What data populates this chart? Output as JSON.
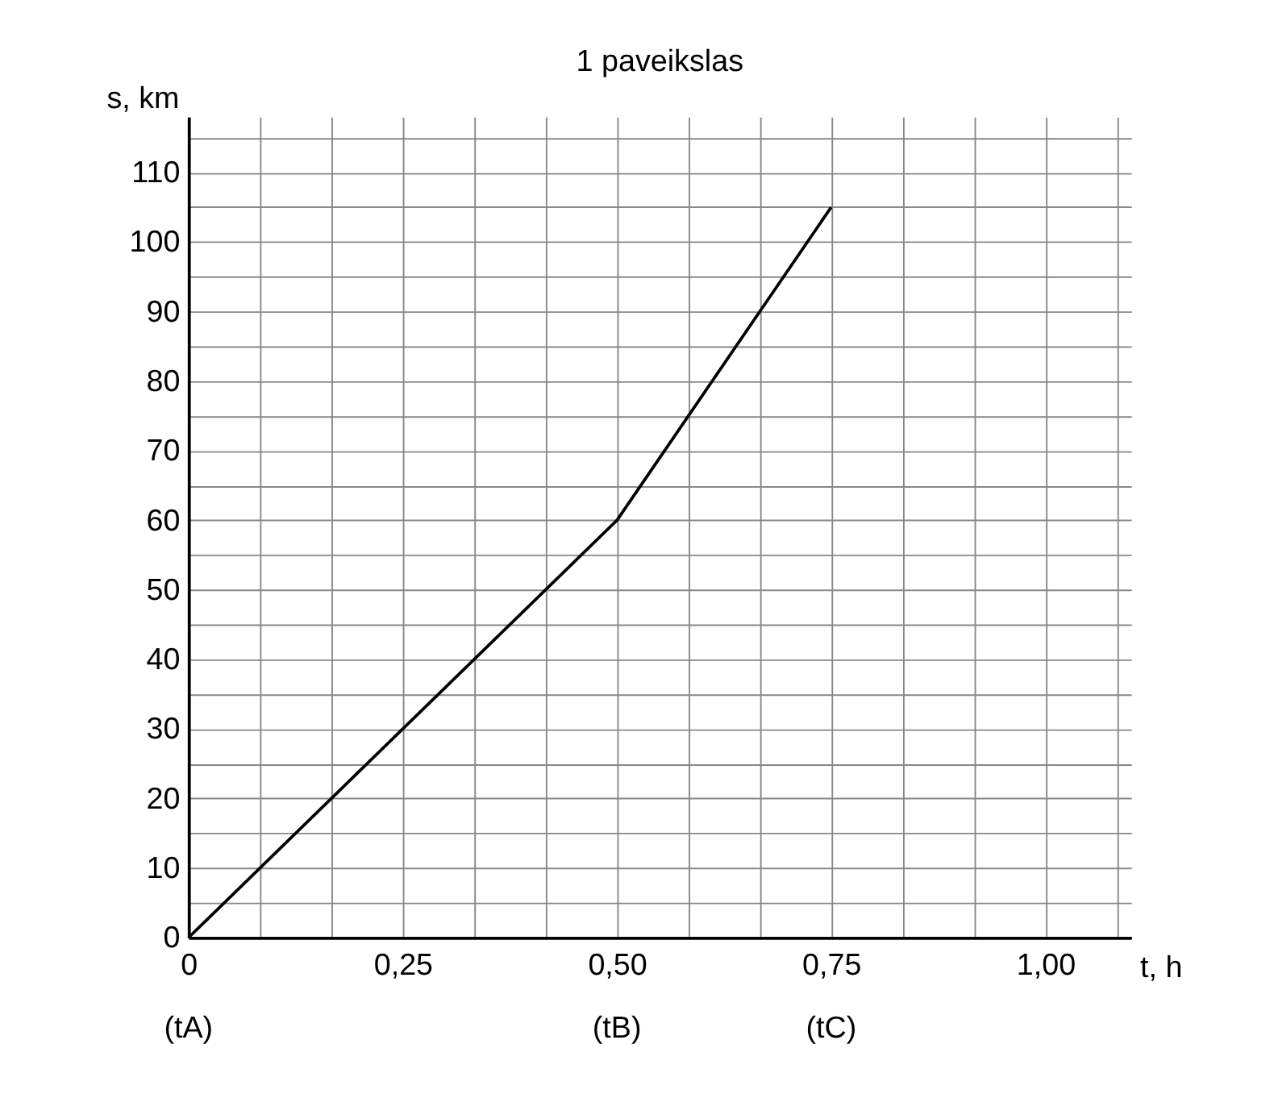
{
  "chart_data": {
    "type": "line",
    "title": "1 paveikslas",
    "xlabel": "t, h",
    "ylabel": "s, km",
    "x": [
      0,
      0.5,
      0.75
    ],
    "series": [
      {
        "color": "#000000",
        "values": [
          0,
          60,
          105
        ]
      }
    ],
    "xlim": [
      0,
      1.1
    ],
    "ylim": [
      0,
      118
    ],
    "xticks": [
      0,
      {
        "value": 0.0833,
        "label": null
      },
      {
        "value": 0.1667,
        "label": null
      },
      {
        "value": 0.25,
        "label": "0,25"
      },
      {
        "value": 0.3333,
        "label": null
      },
      {
        "value": 0.4167,
        "label": null
      },
      {
        "value": 0.5,
        "label": "0,50"
      },
      {
        "value": 0.5833,
        "label": null
      },
      {
        "value": 0.6667,
        "label": null
      },
      {
        "value": 0.75,
        "label": "0,75"
      },
      {
        "value": 0.8333,
        "label": null
      },
      {
        "value": 0.9167,
        "label": null
      },
      {
        "value": 1.0,
        "label": "1,00"
      },
      {
        "value": 1.0833,
        "label": null
      }
    ],
    "yticks": [
      0,
      {
        "value": 5,
        "label": null
      },
      10,
      {
        "value": 15,
        "label": null
      },
      20,
      {
        "value": 25,
        "label": null
      },
      30,
      {
        "value": 35,
        "label": null
      },
      40,
      {
        "value": 45,
        "label": null
      },
      50,
      {
        "value": 55,
        "label": null
      },
      60,
      {
        "value": 65,
        "label": null
      },
      70,
      {
        "value": 75,
        "label": null
      },
      80,
      {
        "value": 85,
        "label": null
      },
      90,
      {
        "value": 95,
        "label": null
      },
      100,
      {
        "value": 105,
        "label": null
      },
      110,
      {
        "value": 115,
        "label": null
      }
    ],
    "grid": true,
    "marker": "none",
    "line_style": "solid",
    "annotations": [
      "(tA)",
      "(tB)",
      "(tC)"
    ]
  }
}
